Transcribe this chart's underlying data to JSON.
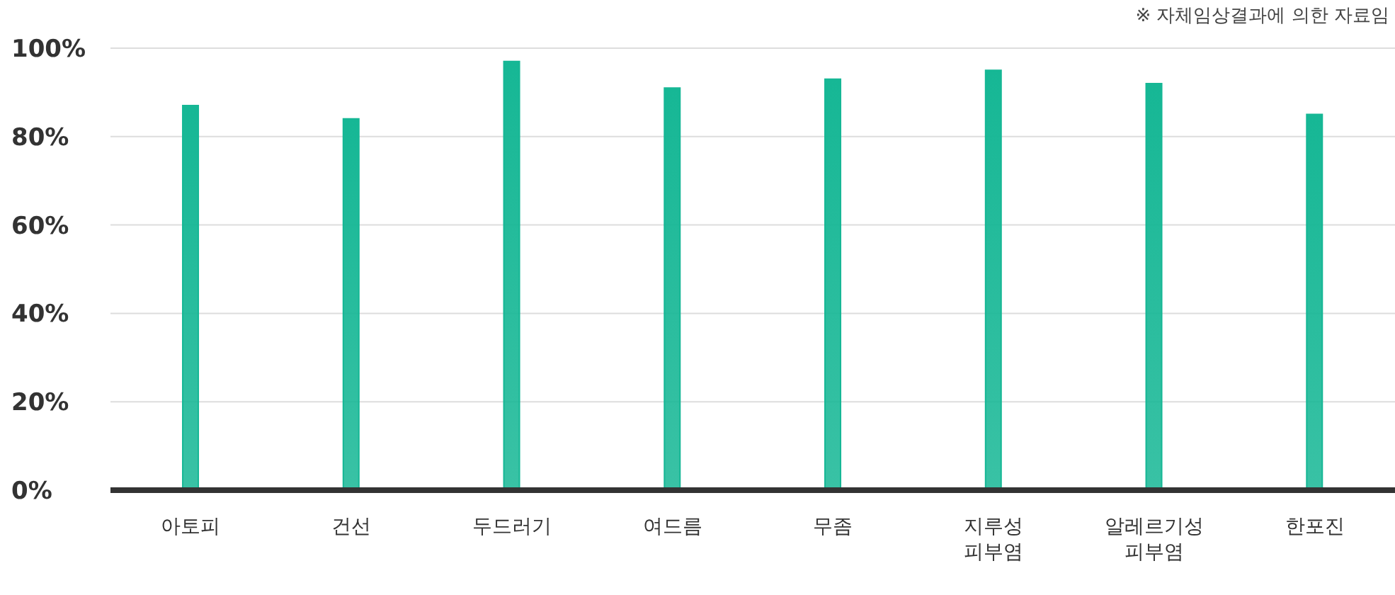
{
  "chart_data": {
    "type": "bar",
    "annotations": [
      "※ 자체임상결과에 의한 자료임"
    ],
    "categories": [
      "아토피",
      "건선",
      "두드러기",
      "여드름",
      "무좀",
      "지루성\n피부염",
      "알레르기성\n피부염",
      "한포진"
    ],
    "values": [
      87,
      84,
      97,
      91,
      93,
      95,
      92,
      85
    ],
    "color": "#16b795",
    "ylim": [
      0,
      100
    ],
    "yticks": [
      {
        "value": 0,
        "label": "0%"
      },
      {
        "value": 20,
        "label": "20%"
      },
      {
        "value": 40,
        "label": "40%"
      },
      {
        "value": 60,
        "label": "60%"
      },
      {
        "value": 80,
        "label": "80%"
      },
      {
        "value": 100,
        "label": "100%"
      }
    ],
    "grid": "y",
    "legend": false
  }
}
